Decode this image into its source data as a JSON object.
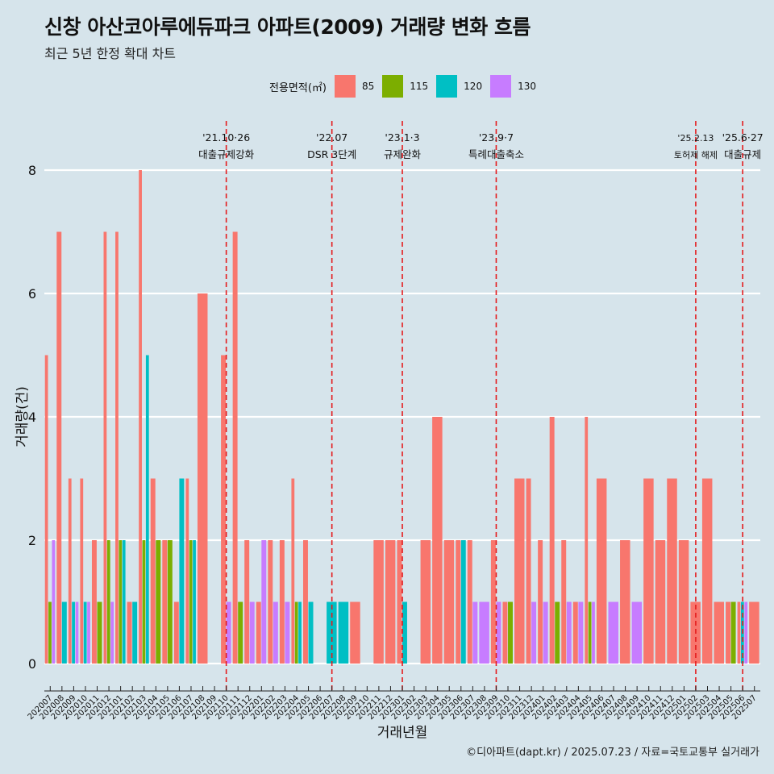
{
  "header": {
    "title": "신창 아산코아루에듀파크 아파트(2009) 거래량 변화 흐름",
    "subtitle": "최근 5년 한정 확대 차트"
  },
  "caption": "©디아파트(dapt.kr) / 2025.07.23 / 자료=국토교통부 실거래가",
  "legend": {
    "title": "전용면적(㎡)",
    "items": [
      {
        "label": "85",
        "color": "#f8766d"
      },
      {
        "label": "115",
        "color": "#7cae00"
      },
      {
        "label": "120",
        "color": "#00bfc4"
      },
      {
        "label": "130",
        "color": "#c77cff"
      }
    ]
  },
  "chart_data": {
    "type": "bar",
    "title": "신창 아산코아루에듀파크 아파트(2009) 거래량 변화 흐름",
    "xlabel": "거래년월",
    "ylabel": "거래량(건)",
    "ylim": [
      0,
      8
    ],
    "y_ticks": [
      "0",
      "2",
      "4",
      "6",
      "8"
    ],
    "grid": true,
    "categories": [
      "202007",
      "202008",
      "202009",
      "202010",
      "202011",
      "202012",
      "202101",
      "202102",
      "202103",
      "202104",
      "202105",
      "202106",
      "202107",
      "202108",
      "202109",
      "202110",
      "202111",
      "202112",
      "202201",
      "202202",
      "202203",
      "202204",
      "202205",
      "202206",
      "202207",
      "202208",
      "202209",
      "202210",
      "202211",
      "202212",
      "202301",
      "202302",
      "202303",
      "202304",
      "202305",
      "202306",
      "202307",
      "202308",
      "202309",
      "202310",
      "202311",
      "202312",
      "202401",
      "202402",
      "202403",
      "202404",
      "202405",
      "202406",
      "202407",
      "202408",
      "202409",
      "202410",
      "202411",
      "202412",
      "202501",
      "202502",
      "202503",
      "202504",
      "202505",
      "202506",
      "202507"
    ],
    "series": [
      {
        "name": "85",
        "values": [
          5,
          7,
          3,
          3,
          2,
          7,
          7,
          1,
          8,
          3,
          2,
          1,
          3,
          6,
          0,
          5,
          7,
          2,
          1,
          2,
          2,
          3,
          2,
          0,
          0,
          0,
          1,
          0,
          2,
          2,
          2,
          0,
          2,
          4,
          2,
          2,
          2,
          0,
          2,
          1,
          3,
          3,
          2,
          4,
          2,
          1,
          4,
          3,
          0,
          2,
          0,
          3,
          2,
          3,
          2,
          1,
          3,
          1,
          1,
          1,
          1
        ]
      },
      {
        "name": "115",
        "values": [
          1,
          0,
          0,
          0,
          1,
          2,
          2,
          0,
          2,
          2,
          2,
          0,
          2,
          0,
          0,
          0,
          1,
          0,
          0,
          0,
          0,
          1,
          0,
          0,
          0,
          0,
          0,
          0,
          0,
          0,
          0,
          0,
          0,
          0,
          0,
          0,
          0,
          0,
          0,
          1,
          0,
          0,
          0,
          1,
          0,
          0,
          1,
          0,
          0,
          0,
          0,
          0,
          0,
          0,
          0,
          0,
          0,
          0,
          1,
          0,
          0
        ]
      },
      {
        "name": "120",
        "values": [
          0,
          1,
          1,
          1,
          0,
          0,
          2,
          1,
          5,
          0,
          0,
          3,
          2,
          0,
          0,
          0,
          0,
          0,
          0,
          0,
          0,
          1,
          1,
          0,
          1,
          1,
          0,
          0,
          0,
          0,
          1,
          0,
          0,
          0,
          0,
          2,
          0,
          0,
          0,
          0,
          0,
          0,
          0,
          0,
          0,
          0,
          0,
          0,
          0,
          0,
          0,
          0,
          0,
          0,
          0,
          0,
          0,
          0,
          0,
          1,
          0
        ]
      },
      {
        "name": "130",
        "values": [
          2,
          0,
          1,
          1,
          0,
          1,
          0,
          0,
          0,
          0,
          0,
          0,
          0,
          0,
          0,
          1,
          0,
          1,
          2,
          1,
          1,
          0,
          0,
          0,
          0,
          0,
          0,
          0,
          0,
          0,
          0,
          0,
          0,
          0,
          0,
          0,
          1,
          1,
          1,
          0,
          0,
          1,
          1,
          0,
          1,
          1,
          1,
          0,
          1,
          0,
          1,
          0,
          0,
          0,
          0,
          0,
          0,
          0,
          0,
          1,
          0
        ]
      }
    ],
    "events": [
      {
        "date": "'21.10·26",
        "label": "대출규제강화",
        "month": "202110"
      },
      {
        "date": "'22.07",
        "label": "DSR 3단계",
        "month": "202207"
      },
      {
        "date": "'23.1·3",
        "label": "규제완화",
        "month": "202301"
      },
      {
        "date": "'23.9·7",
        "label": "특례대출축소",
        "month": "202309"
      },
      {
        "date": "'25.2.13",
        "label": "토허제 해제",
        "month": "202502"
      },
      {
        "date": "'25.6·27",
        "label": "대출규제",
        "month": "202506"
      }
    ]
  }
}
